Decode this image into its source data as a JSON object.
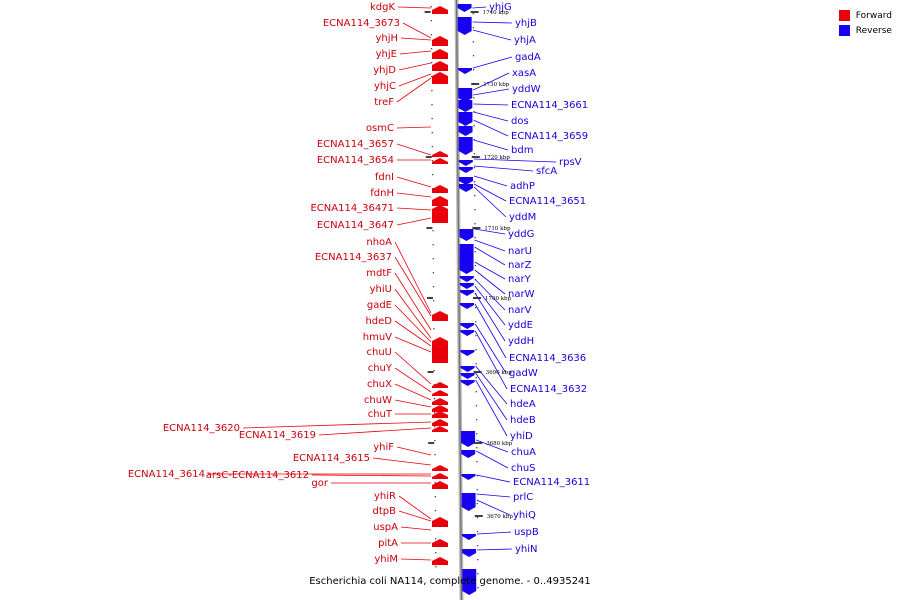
{
  "colors": {
    "forward": "#e8000b",
    "reverse": "#1800f0",
    "axis": "#9a9a9a"
  },
  "legend": [
    {
      "label": "Forward",
      "color": "#e8000b"
    },
    {
      "label": "Reverse",
      "color": "#1800f0"
    }
  ],
  "caption": "Escherichia coli NA114, complete genome. - 0..4935241",
  "ruler": [
    {
      "label": "1740 kbp",
      "pos": 1740
    },
    {
      "label": "1730 kbp",
      "pos": 1730
    },
    {
      "label": "1720 kbp",
      "pos": 1720
    },
    {
      "label": "1710 kbp",
      "pos": 1710
    },
    {
      "label": "1700 kbp",
      "pos": 1700
    },
    {
      "label": "3690 kbp",
      "pos": 3690
    },
    {
      "label": "3680 kbp",
      "pos": 3680
    },
    {
      "label": "3670 kbp",
      "pos": 3670
    }
  ],
  "forward_genes": [
    "kdgK",
    "ECNA114_3673",
    "yhjH",
    "yhjE",
    "yhjD",
    "yhjC",
    "treF",
    "osmC",
    "ECNA114_3657",
    "ECNA114_3654",
    "fdnI",
    "fdnH",
    "ECNA114_36471",
    "ECNA114_3647",
    "nhoA",
    "ECNA114_3637",
    "mdtF",
    "yhiU",
    "gadE",
    "hdeD",
    "hmuV",
    "chuU",
    "chuY",
    "chuX",
    "chuW",
    "chuT",
    "ECNA114_3620",
    "ECNA114_3619",
    "yhiF",
    "ECNA114_3615",
    "ECNA114_3614",
    "arsC-ECNA114_3612",
    "gor",
    "yhiR",
    "dtpB",
    "uspA",
    "pitA",
    "yhiM"
  ],
  "reverse_genes": [
    "yhjG",
    "yhjB",
    "yhjA",
    "gadA",
    "xasA",
    "yddW",
    "ECNA114_3661",
    "dos",
    "ECNA114_3659",
    "bdm",
    "rpsV",
    "sfcA",
    "adhP",
    "ECNA114_3651",
    "yddM",
    "yddG",
    "narU",
    "narZ",
    "narY",
    "narW",
    "narV",
    "yddE",
    "yddH",
    "ECNA114_3636",
    "gadW",
    "ECNA114_3632",
    "hdeA",
    "hdeB",
    "yhiD",
    "chuA",
    "chuS",
    "ECNA114_3611",
    "prlC",
    "yhiQ",
    "uspB",
    "yhiN"
  ]
}
